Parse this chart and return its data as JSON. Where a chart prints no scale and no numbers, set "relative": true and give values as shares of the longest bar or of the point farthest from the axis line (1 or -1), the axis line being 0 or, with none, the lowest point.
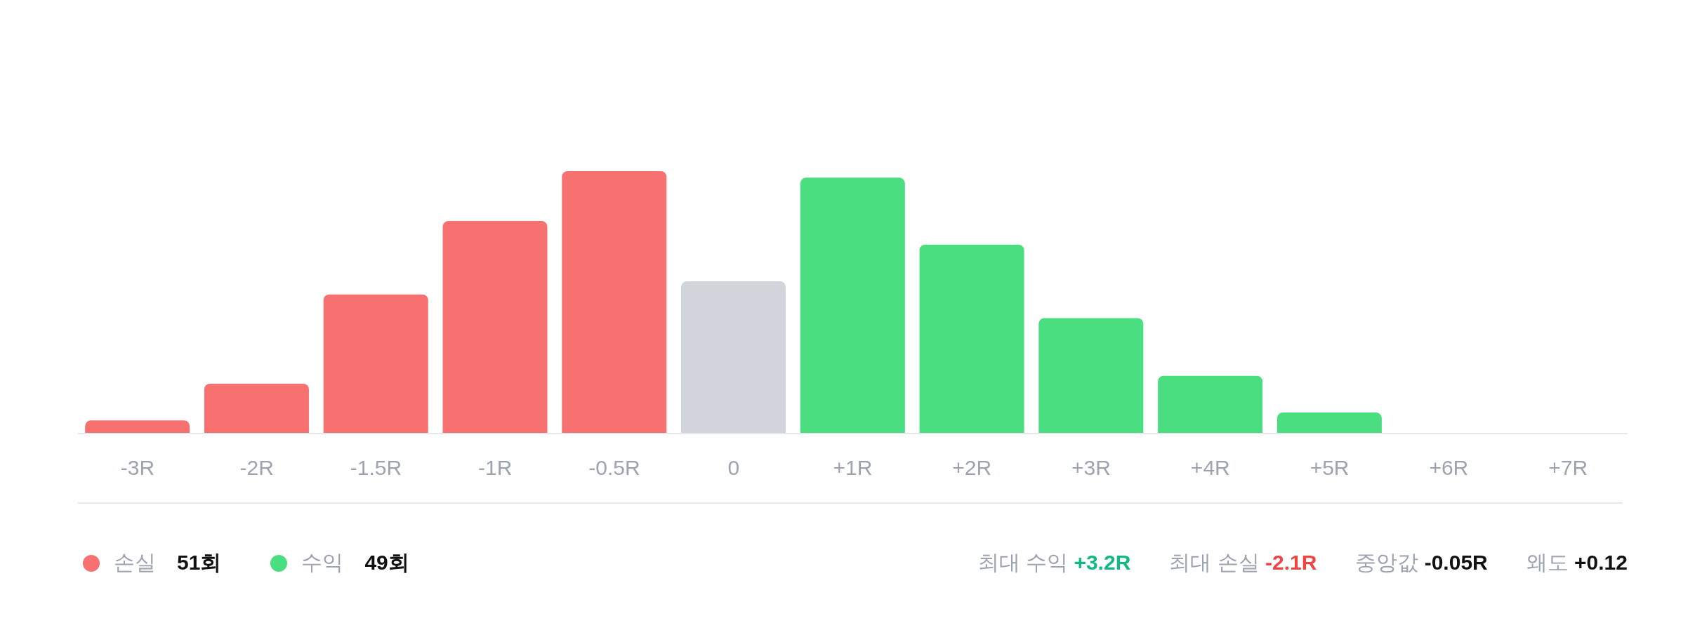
{
  "chart_data": {
    "type": "bar",
    "relative": true,
    "stacked": true,
    "legend": "bottom left",
    "categories": [
      "-3R",
      "-2R",
      "-1.5R",
      "-1R",
      "-0.5R",
      "0",
      "+1R",
      "+2R",
      "+3R",
      "+4R",
      "+5R",
      "+6R",
      "+7R"
    ],
    "series": [
      {
        "name": "손실",
        "color": "#f87171",
        "values": [
          0.05,
          0.19,
          0.53,
          0.81,
          1,
          null,
          null,
          null,
          null,
          null,
          null,
          null,
          null
        ]
      },
      {
        "color": "#d1d5db",
        "values": [
          null,
          null,
          null,
          null,
          null,
          0.58,
          null,
          null,
          null,
          null,
          null,
          null,
          null
        ]
      },
      {
        "name": "수익",
        "color": "#4ade80",
        "values": [
          null,
          null,
          null,
          null,
          null,
          null,
          0.975,
          0.72,
          0.44,
          0.22,
          0.08,
          0,
          0
        ]
      }
    ],
    "annotations": [
      "51회",
      "49회",
      "최대 수익 +3.2R",
      "최대 손실 -2.1R",
      "중앙값 -0.05R",
      "왜도 +0.12"
    ]
  }
}
